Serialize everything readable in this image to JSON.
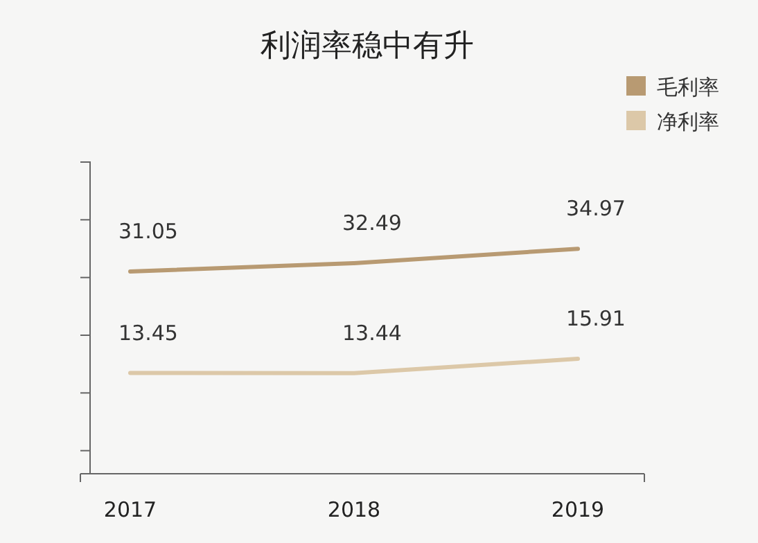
{
  "chart_data": {
    "type": "line",
    "title": "利润率稳中有升",
    "categories": [
      "2017",
      "2018",
      "2019"
    ],
    "series": [
      {
        "name": "毛利率",
        "color": "#b89a72",
        "values": [
          31.05,
          32.49,
          34.97
        ]
      },
      {
        "name": "净利率",
        "color": "#dcc8a8",
        "values": [
          13.45,
          13.44,
          15.91
        ]
      }
    ],
    "ylim": [
      -4,
      50
    ],
    "yticks": [
      {
        "value": 0,
        "label": null
      },
      {
        "value": 10,
        "label": null
      },
      {
        "value": 20,
        "label": null
      },
      {
        "value": 30,
        "label": null
      },
      {
        "value": 40,
        "label": null
      },
      {
        "value": 50,
        "label": null
      }
    ],
    "data_labels": true,
    "legend": "top right",
    "grid": false,
    "marker": "none",
    "line_style": "solid"
  }
}
